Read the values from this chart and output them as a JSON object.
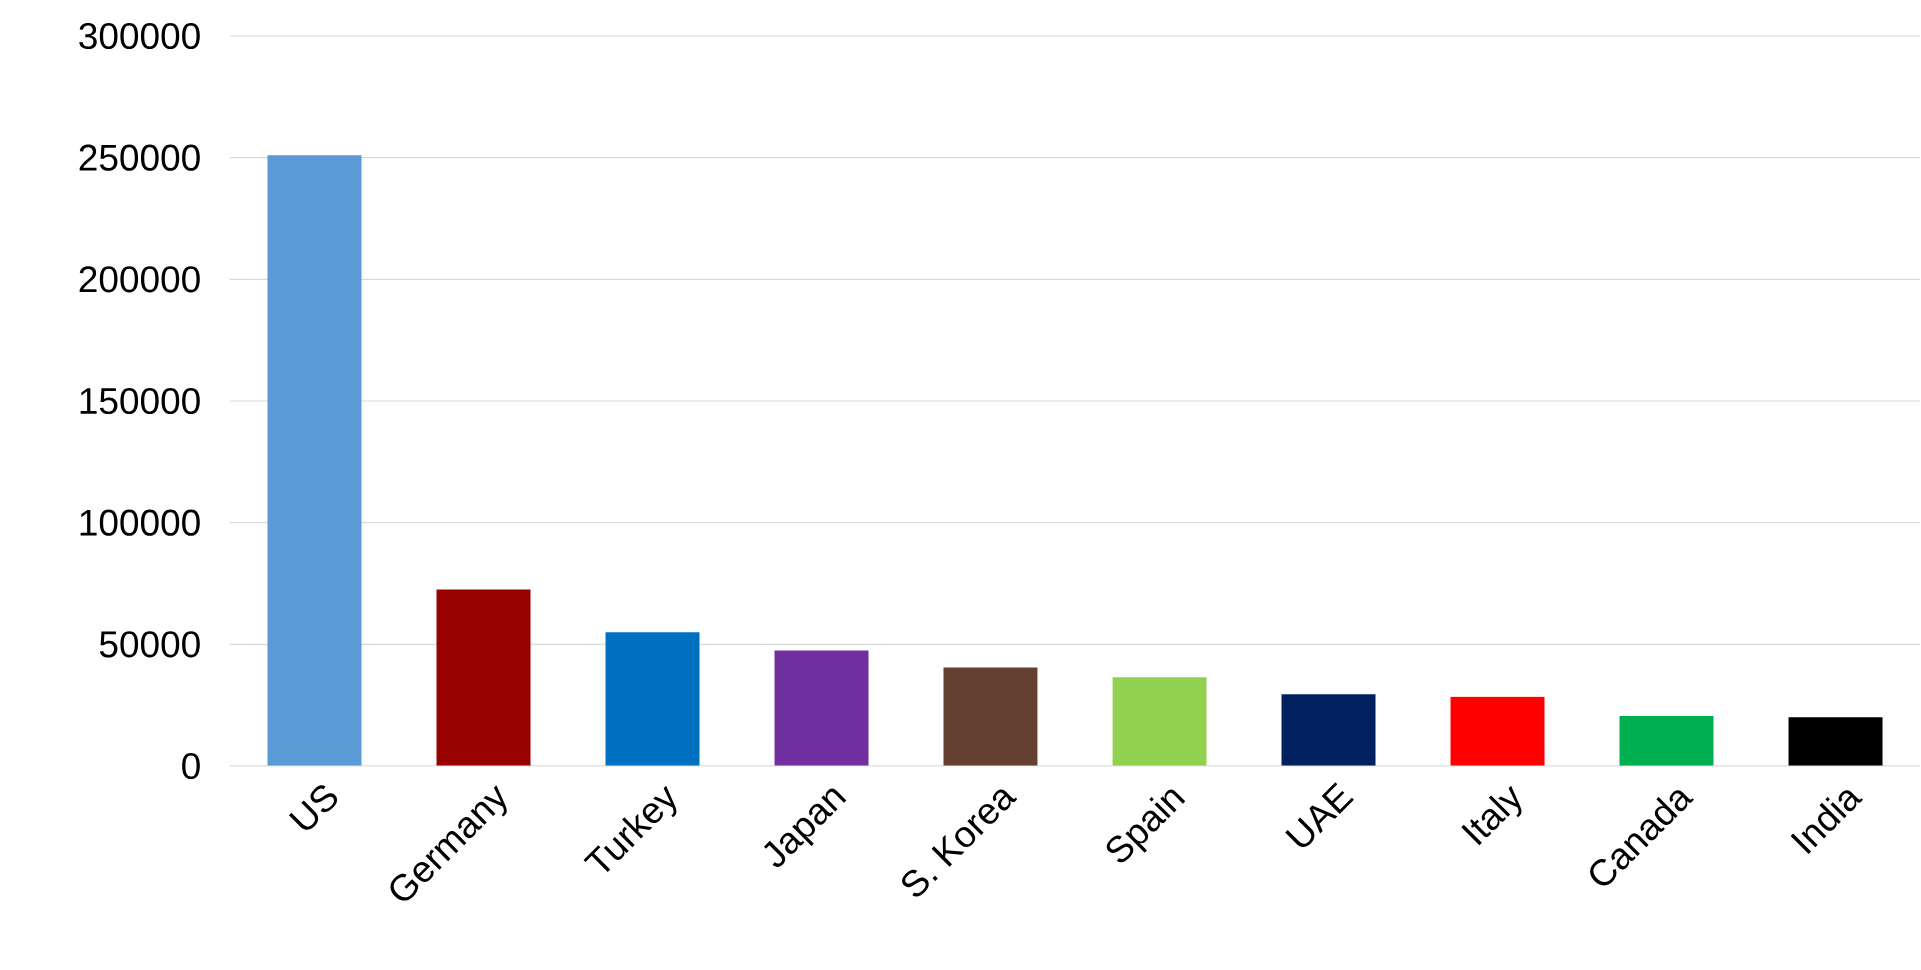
{
  "chart_data": {
    "type": "bar",
    "categories": [
      "US",
      "Germany",
      "Turkey",
      "Japan",
      "S. Korea",
      "Spain",
      "UAE",
      "Italy",
      "Canada",
      "India"
    ],
    "values": [
      251000,
      72500,
      55000,
      47500,
      40500,
      36500,
      29500,
      28500,
      20500,
      20000
    ],
    "colors": [
      "#5b9bd5",
      "#990000",
      "#0070c0",
      "#7030a0",
      "#634030",
      "#92d050",
      "#002060",
      "#ff0000",
      "#00b050",
      "#000000"
    ],
    "ylim": [
      0,
      300000
    ],
    "yticks": [
      0,
      50000,
      100000,
      150000,
      200000,
      250000,
      300000
    ],
    "grid": "y"
  }
}
